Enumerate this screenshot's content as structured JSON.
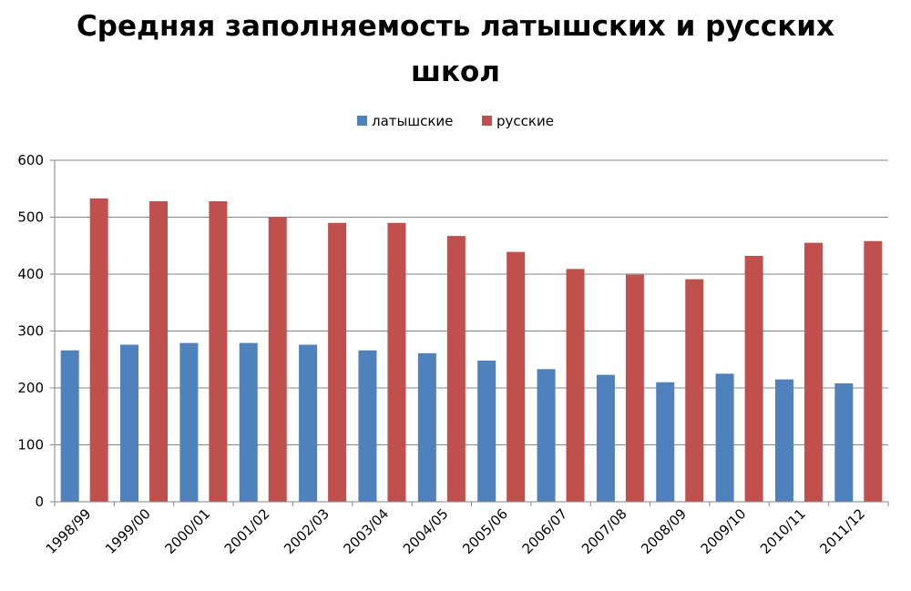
{
  "chart_data": {
    "type": "bar",
    "title": "Средняя заполняемость латышских и русских школ",
    "categories": [
      "1998/99",
      "1999/00",
      "2000/01",
      "2001/02",
      "2002/03",
      "2003/04",
      "2004/05",
      "2005/06",
      "2006/07",
      "2007/08",
      "2008/09",
      "2009/10",
      "2010/11",
      "2011/12"
    ],
    "series": [
      {
        "name": "латышские",
        "color": "#4f81bd",
        "values": [
          266,
          276,
          279,
          279,
          276,
          266,
          261,
          248,
          233,
          223,
          210,
          225,
          215,
          208
        ]
      },
      {
        "name": "русские",
        "color": "#c0504d",
        "values": [
          533,
          528,
          528,
          500,
          490,
          490,
          467,
          439,
          409,
          399,
          391,
          432,
          455,
          458
        ]
      }
    ],
    "ylim": [
      0,
      600
    ],
    "yticks": [
      0,
      100,
      200,
      300,
      400,
      500,
      600
    ],
    "grid": true,
    "legend_position": "top"
  }
}
